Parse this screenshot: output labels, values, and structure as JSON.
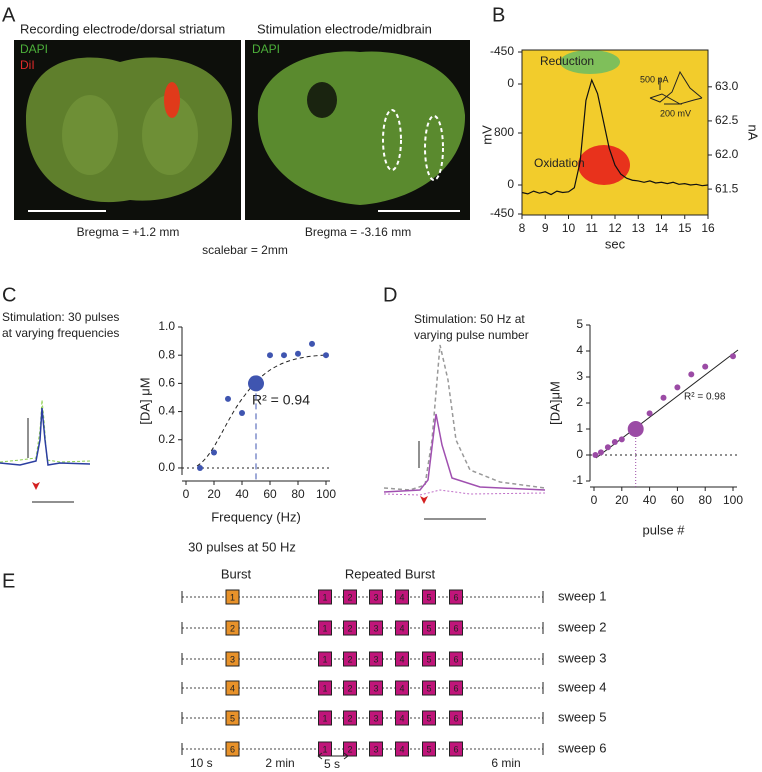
{
  "panel_A": {
    "label": "A",
    "left_title": "Recording electrode/dorsal striatum",
    "right_title": "Stimulation electrode/midbrain",
    "left_stains": [
      "DAPI",
      "DiI"
    ],
    "right_stain": "DAPI",
    "left_bregma": "Bregma = +1.2 mm",
    "right_bregma": "Bregma = -3.16 mm",
    "scalebar": "scalebar = 2mm"
  },
  "panel_B": {
    "label": "B",
    "reduction": "Reduction",
    "oxidation": "Oxidation",
    "inset_current": "500 pA",
    "inset_voltage": "200 mV",
    "mv_label": "mV",
    "mv_ticks": [
      -450,
      0,
      800,
      0,
      -450
    ]
  },
  "panel_C": {
    "label": "C",
    "caption": [
      "Stimulation: 30 pulses",
      "at varying frequencies"
    ],
    "r2": "R² = 0.94",
    "footer": "30 pulses at 50 Hz"
  },
  "panel_D": {
    "label": "D",
    "caption": [
      "Stimulation: 50 Hz at",
      "varying pulse number"
    ],
    "r2": "R² = 0.98"
  },
  "panel_E": {
    "label": "E",
    "burst": "Burst",
    "repeated": "Repeated Burst",
    "sweeps": [
      {
        "name": "sweep 1",
        "burst": "1",
        "repeats": [
          "1",
          "2",
          "3",
          "4",
          "5",
          "6"
        ]
      },
      {
        "name": "sweep 2",
        "burst": "2",
        "repeats": [
          "1",
          "2",
          "3",
          "4",
          "5",
          "6"
        ]
      },
      {
        "name": "sweep 3",
        "burst": "3",
        "repeats": [
          "1",
          "2",
          "3",
          "4",
          "5",
          "6"
        ]
      },
      {
        "name": "sweep 4",
        "burst": "4",
        "repeats": [
          "1",
          "2",
          "3",
          "4",
          "5",
          "6"
        ]
      },
      {
        "name": "sweep 5",
        "burst": "5",
        "repeats": [
          "1",
          "2",
          "3",
          "4",
          "5",
          "6"
        ]
      },
      {
        "name": "sweep 6",
        "burst": "6",
        "repeats": [
          "1",
          "2",
          "3",
          "4",
          "5",
          "6"
        ]
      }
    ],
    "times": [
      "10 s",
      "2 min",
      "5 s",
      "6 min"
    ]
  },
  "chart_data": [
    {
      "type": "line",
      "x_label": "sec",
      "y_label": "nA",
      "color": "#111",
      "x": [
        8,
        8.25,
        8.5,
        8.75,
        9,
        9.25,
        9.5,
        9.75,
        10,
        10.25,
        10.5,
        10.75,
        11,
        11.25,
        11.5,
        11.75,
        12,
        12.25,
        12.5,
        12.75,
        13,
        13.25,
        13.5,
        13.75,
        14,
        14.25,
        14.5,
        14.75,
        15,
        15.25,
        15.5,
        15.75,
        16
      ],
      "values": [
        61.45,
        61.43,
        61.47,
        61.44,
        61.46,
        61.42,
        61.47,
        61.45,
        61.46,
        61.52,
        61.9,
        62.8,
        63.1,
        62.9,
        62.5,
        62.1,
        61.85,
        61.72,
        61.66,
        61.63,
        61.62,
        61.6,
        61.62,
        61.59,
        61.6,
        61.58,
        61.6,
        61.57,
        61.58,
        61.56,
        61.57,
        61.55,
        61.56
      ],
      "xlim": [
        8,
        16
      ],
      "xticks": [
        8,
        9,
        10,
        11,
        12,
        13,
        14,
        15,
        16
      ],
      "ylim": [
        61.12,
        63.54
      ],
      "yticks": [
        61.5,
        {
          "value": 62,
          "label": "62.0"
        },
        62.5,
        {
          "value": 63,
          "label": "63.0"
        }
      ]
    },
    {
      "type": "scatter",
      "x_label": "Frequency (Hz)",
      "y_label": "[DA] μM",
      "color": "#3f55b0",
      "highlight": 4,
      "x": [
        10,
        20,
        30,
        40,
        50,
        60,
        70,
        80,
        90,
        100
      ],
      "values": [
        0,
        0.11,
        0.49,
        0.39,
        0.6,
        0.8,
        0.8,
        0.81,
        0.88,
        0.8
      ],
      "xlim": [
        0,
        100
      ],
      "xticks": [
        0,
        20,
        40,
        60,
        80,
        100
      ],
      "ylim": [
        -0.05,
        1
      ],
      "yticks": [
        {
          "value": 0,
          "label": "0.0"
        },
        0.2,
        0.4,
        0.6,
        0.8,
        {
          "value": 1,
          "label": "1.0"
        }
      ]
    },
    {
      "type": "scatter",
      "x_label": "pulse #",
      "y_label": "[DA]μM",
      "color": "#9b4ba5",
      "highlight": 5,
      "x": [
        1,
        5,
        10,
        15,
        20,
        30,
        40,
        50,
        60,
        70,
        80,
        100
      ],
      "values": [
        0,
        0.1,
        0.3,
        0.5,
        0.6,
        1.0,
        1.6,
        2.2,
        2.6,
        3.1,
        3.4,
        3.8
      ],
      "xlim": [
        0,
        100
      ],
      "xticks": [
        0,
        20,
        40,
        60,
        80,
        100
      ],
      "ylim": [
        -1,
        5
      ],
      "yticks": [
        -1,
        0,
        1,
        2,
        3,
        4,
        5
      ]
    }
  ]
}
